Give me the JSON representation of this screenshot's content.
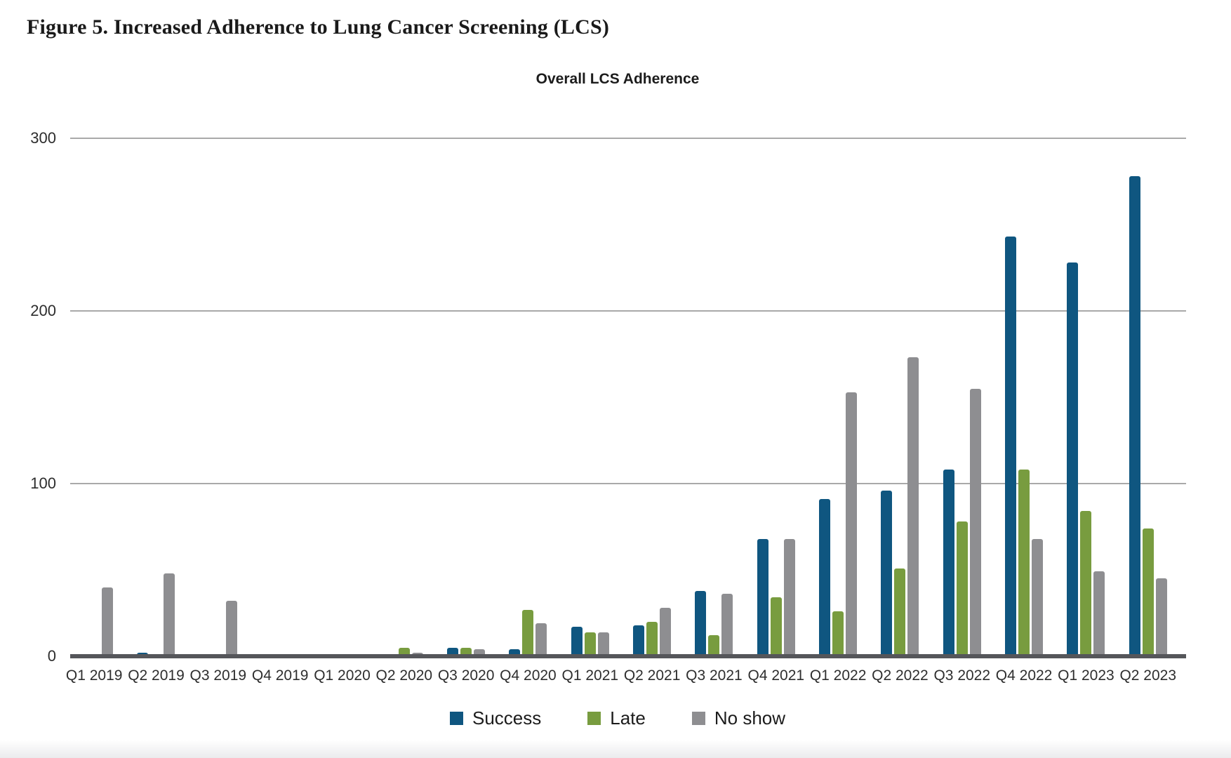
{
  "page": {
    "figure_title": "Figure 5. Increased Adherence to Lung Cancer Screening (LCS)"
  },
  "chart_data": {
    "type": "bar",
    "title": "Overall LCS Adherence",
    "categories": [
      "Q1 2019",
      "Q2 2019",
      "Q3 2019",
      "Q4 2019",
      "Q1 2020",
      "Q2 2020",
      "Q3 2020",
      "Q4 2020",
      "Q1 2021",
      "Q2 2021",
      "Q3 2021",
      "Q4 2021",
      "Q1 2022",
      "Q2 2022",
      "Q3 2022",
      "Q4 2022",
      "Q1 2023",
      "Q2 2023"
    ],
    "series": [
      {
        "name": "Success",
        "color": "#0f5680",
        "values": [
          0,
          2,
          0,
          1,
          1,
          0,
          5,
          4,
          17,
          18,
          38,
          68,
          91,
          96,
          108,
          243,
          228,
          278
        ]
      },
      {
        "name": "Late",
        "color": "#789c3f",
        "values": [
          0,
          0,
          0,
          0,
          0,
          5,
          5,
          27,
          14,
          20,
          12,
          34,
          26,
          51,
          78,
          108,
          84,
          74
        ]
      },
      {
        "name": "No show",
        "color": "#8e8e91",
        "values": [
          40,
          48,
          32,
          0,
          0,
          2,
          4,
          19,
          14,
          28,
          36,
          68,
          153,
          173,
          155,
          68,
          49,
          45
        ]
      }
    ],
    "ylim": [
      0,
      300
    ],
    "yticks": [
      0,
      100,
      200,
      300
    ],
    "xlabel": "",
    "ylabel": "",
    "grid": true,
    "legend_position": "bottom"
  }
}
